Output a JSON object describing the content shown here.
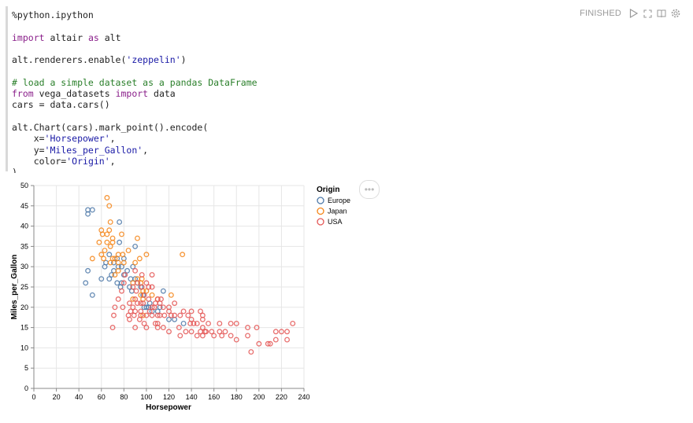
{
  "status": {
    "label": "FINISHED",
    "icons": [
      "run-icon",
      "expand-icon",
      "book-icon",
      "settings-icon"
    ]
  },
  "code": {
    "line1": "%python.ipython",
    "line3_kw": "import",
    "line3_a": " altair ",
    "line3_kw2": "as",
    "line3_b": " alt",
    "line5_a": "alt.renderers.enable(",
    "line5_str": "'zeppelin'",
    "line5_b": ")",
    "line7": "# load a simple dataset as a pandas DataFrame",
    "line8_kw": "from",
    "line8_a": " vega_datasets ",
    "line8_kw2": "import",
    "line8_b": " data",
    "line9": "cars = data.cars()",
    "line11": "alt.Chart(cars).mark_point().encode(",
    "line12_a": "    x=",
    "line12_str": "'Horsepower'",
    "line12_b": ",",
    "line13_a": "    y=",
    "line13_str": "'Miles_per_Gallon'",
    "line13_b": ",",
    "line14_a": "    color=",
    "line14_str": "'Origin'",
    "line14_b": ",",
    "line15": ")"
  },
  "chart_data": {
    "type": "scatter",
    "xlabel": "Horsepower",
    "ylabel": "Miles_per_Gallon",
    "xlim": [
      0,
      240
    ],
    "ylim": [
      0,
      50
    ],
    "x_ticks": [
      0,
      20,
      40,
      60,
      80,
      100,
      120,
      140,
      160,
      180,
      200,
      220,
      240
    ],
    "y_ticks": [
      0,
      5,
      10,
      15,
      20,
      25,
      30,
      35,
      40,
      45,
      50
    ],
    "legend_title": "Origin",
    "legend_position": "right",
    "colors": {
      "Europe": "#4c78a8",
      "Japan": "#f58518",
      "USA": "#e45756"
    },
    "series": [
      {
        "name": "Europe",
        "points": [
          [
            46,
            26
          ],
          [
            48,
            43
          ],
          [
            48,
            44
          ],
          [
            48,
            29
          ],
          [
            52,
            44
          ],
          [
            60,
            27
          ],
          [
            63,
            30
          ],
          [
            67,
            33
          ],
          [
            67,
            27
          ],
          [
            69,
            28
          ],
          [
            71,
            31
          ],
          [
            74,
            26
          ],
          [
            75,
            30
          ],
          [
            76,
            41
          ],
          [
            76,
            36
          ],
          [
            77,
            25
          ],
          [
            78,
            30
          ],
          [
            78,
            26
          ],
          [
            80,
            28
          ],
          [
            80,
            32
          ],
          [
            83,
            29
          ],
          [
            85,
            25
          ],
          [
            86,
            27
          ],
          [
            87,
            24
          ],
          [
            88,
            30
          ],
          [
            90,
            35
          ],
          [
            90,
            27
          ],
          [
            92,
            26
          ],
          [
            95,
            25
          ],
          [
            97,
            23
          ],
          [
            98,
            20
          ],
          [
            100,
            20
          ],
          [
            102,
            20
          ],
          [
            103,
            21
          ],
          [
            105,
            19
          ],
          [
            110,
            19
          ],
          [
            112,
            20
          ],
          [
            115,
            24
          ],
          [
            120,
            17
          ],
          [
            125,
            17
          ],
          [
            133,
            16
          ],
          [
            52,
            23
          ],
          [
            71,
            29
          ],
          [
            64,
            31
          ],
          [
            74,
            32
          ]
        ]
      },
      {
        "name": "Japan",
        "points": [
          [
            52,
            32
          ],
          [
            58,
            36
          ],
          [
            60,
            33
          ],
          [
            61,
            38
          ],
          [
            62,
            32
          ],
          [
            65,
            47
          ],
          [
            65,
            38
          ],
          [
            65,
            36
          ],
          [
            67,
            45
          ],
          [
            67,
            39
          ],
          [
            68,
            31
          ],
          [
            68,
            35
          ],
          [
            70,
            32
          ],
          [
            70,
            37
          ],
          [
            72,
            32
          ],
          [
            72,
            28
          ],
          [
            75,
            31
          ],
          [
            75,
            33
          ],
          [
            75,
            29
          ],
          [
            78,
            38
          ],
          [
            79,
            33
          ],
          [
            80,
            31
          ],
          [
            84,
            34
          ],
          [
            88,
            26
          ],
          [
            90,
            31
          ],
          [
            92,
            37
          ],
          [
            92,
            27
          ],
          [
            94,
            32
          ],
          [
            95,
            26
          ],
          [
            96,
            27
          ],
          [
            97,
            24
          ],
          [
            97,
            22
          ],
          [
            97,
            18
          ],
          [
            100,
            33
          ],
          [
            105,
            23
          ],
          [
            110,
            22
          ],
          [
            122,
            23
          ],
          [
            132,
            33
          ],
          [
            60,
            39
          ],
          [
            63,
            34
          ],
          [
            68,
            41
          ],
          [
            70,
            36
          ],
          [
            88,
            22
          ],
          [
            95,
            23
          ],
          [
            100,
            24
          ]
        ]
      },
      {
        "name": "USA",
        "points": [
          [
            70,
            15
          ],
          [
            71,
            18
          ],
          [
            72,
            20
          ],
          [
            75,
            22
          ],
          [
            78,
            24
          ],
          [
            79,
            20
          ],
          [
            80,
            26
          ],
          [
            81,
            28
          ],
          [
            84,
            18
          ],
          [
            85,
            21
          ],
          [
            85,
            17
          ],
          [
            86,
            19
          ],
          [
            88,
            20
          ],
          [
            88,
            25
          ],
          [
            89,
            18
          ],
          [
            90,
            22
          ],
          [
            90,
            29
          ],
          [
            90,
            19
          ],
          [
            90,
            15
          ],
          [
            91,
            24
          ],
          [
            92,
            21
          ],
          [
            92,
            26
          ],
          [
            94,
            17
          ],
          [
            95,
            19
          ],
          [
            95,
            18
          ],
          [
            96,
            28
          ],
          [
            97,
            21
          ],
          [
            98,
            16
          ],
          [
            100,
            18
          ],
          [
            100,
            15
          ],
          [
            100,
            26
          ],
          [
            102,
            22
          ],
          [
            103,
            19
          ],
          [
            105,
            28
          ],
          [
            105,
            20
          ],
          [
            105,
            18
          ],
          [
            105,
            25
          ],
          [
            107,
            20
          ],
          [
            108,
            16
          ],
          [
            110,
            16
          ],
          [
            110,
            15
          ],
          [
            110,
            18
          ],
          [
            110,
            22
          ],
          [
            112,
            18
          ],
          [
            113,
            22
          ],
          [
            115,
            20
          ],
          [
            115,
            15
          ],
          [
            116,
            18
          ],
          [
            120,
            19
          ],
          [
            120,
            20
          ],
          [
            122,
            18
          ],
          [
            125,
            18
          ],
          [
            129,
            15
          ],
          [
            130,
            13
          ],
          [
            130,
            18
          ],
          [
            133,
            19
          ],
          [
            135,
            14
          ],
          [
            137,
            18
          ],
          [
            139,
            16
          ],
          [
            140,
            14
          ],
          [
            140,
            17
          ],
          [
            142,
            16
          ],
          [
            145,
            13
          ],
          [
            145,
            16
          ],
          [
            148,
            14
          ],
          [
            150,
            15
          ],
          [
            150,
            13
          ],
          [
            150,
            17
          ],
          [
            152,
            14
          ],
          [
            153,
            14
          ],
          [
            155,
            16
          ],
          [
            158,
            14
          ],
          [
            160,
            13
          ],
          [
            165,
            14
          ],
          [
            165,
            16
          ],
          [
            167,
            13
          ],
          [
            170,
            14
          ],
          [
            175,
            13
          ],
          [
            175,
            16
          ],
          [
            180,
            12
          ],
          [
            180,
            16
          ],
          [
            190,
            15
          ],
          [
            190,
            13
          ],
          [
            193,
            9
          ],
          [
            198,
            15
          ],
          [
            200,
            11
          ],
          [
            208,
            11
          ],
          [
            210,
            11
          ],
          [
            215,
            12
          ],
          [
            215,
            14
          ],
          [
            220,
            14
          ],
          [
            225,
            14
          ],
          [
            225,
            12
          ],
          [
            230,
            16
          ],
          [
            95,
            21
          ],
          [
            96,
            25
          ],
          [
            98,
            23
          ],
          [
            102,
            25
          ],
          [
            108,
            21
          ],
          [
            112,
            21
          ],
          [
            120,
            14
          ],
          [
            125,
            21
          ],
          [
            140,
            19
          ],
          [
            148,
            19
          ],
          [
            150,
            18
          ]
        ]
      }
    ]
  }
}
